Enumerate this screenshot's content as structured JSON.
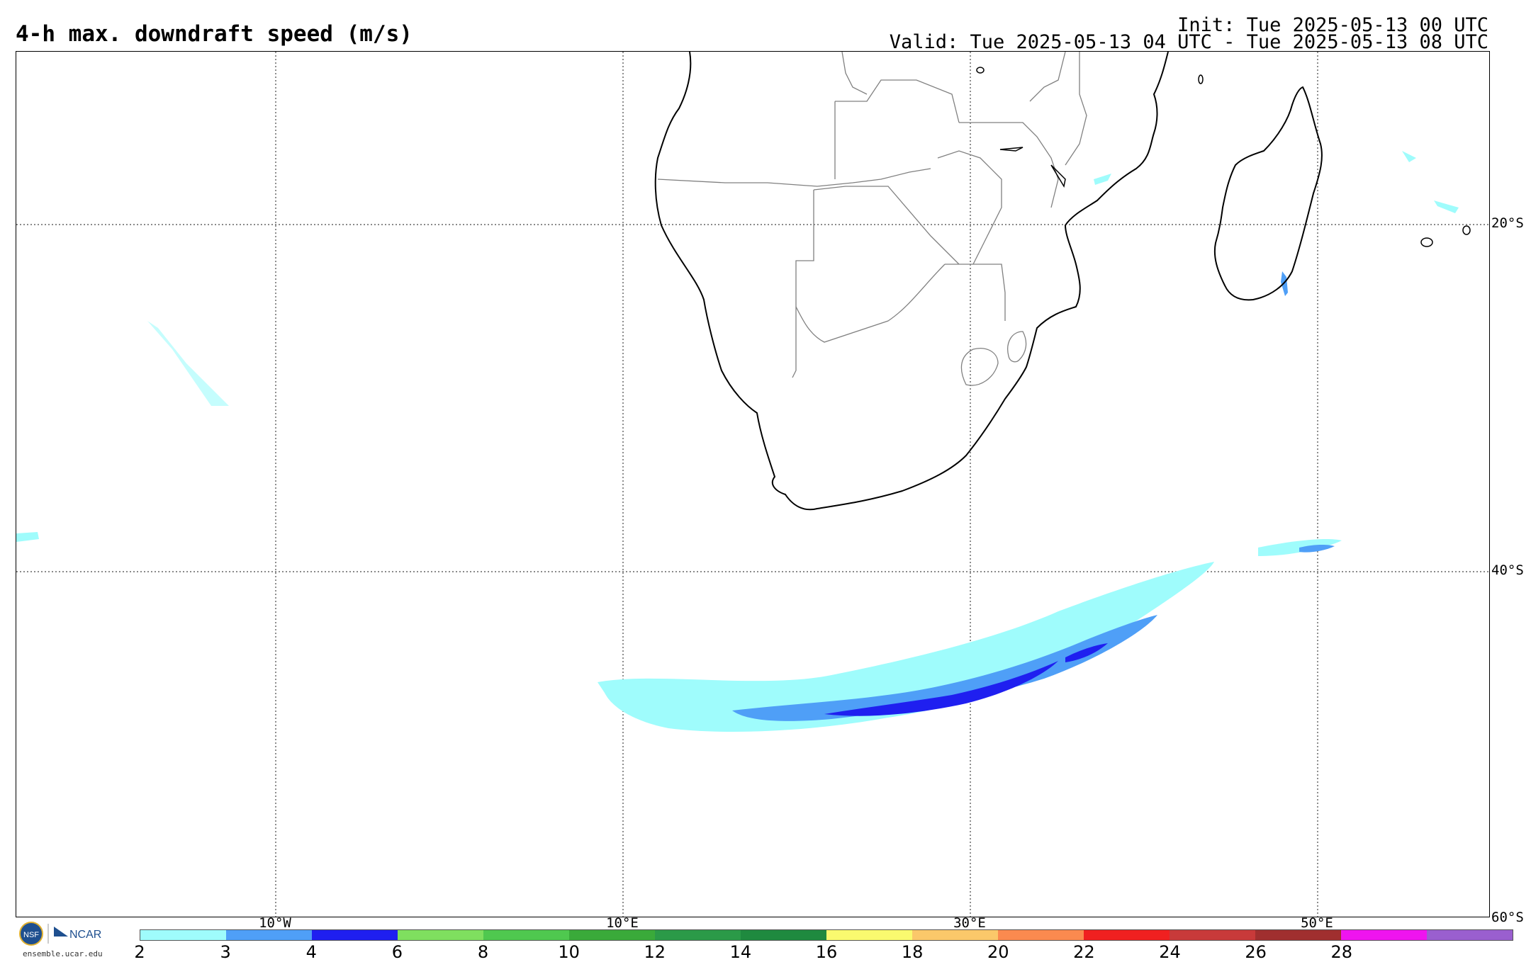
{
  "header": {
    "title": "4-h max. downdraft speed (m/s)",
    "init": "Init: Tue 2025-05-13 00 UTC",
    "valid": "Valid: Tue 2025-05-13 04 UTC - Tue 2025-05-13 08 UTC"
  },
  "map": {
    "lat_labels": [
      "20°S",
      "40°S",
      "60°S"
    ],
    "lon_labels": [
      "10°W",
      "10°E",
      "30°E",
      "50°E"
    ],
    "regions": [
      "Southern Africa",
      "Madagascar",
      "South Atlantic Ocean",
      "Southern Indian Ocean"
    ],
    "coastline_color": "#000000",
    "border_color": "#808080",
    "grid_style": "dotted"
  },
  "colorbar": {
    "ticks": [
      "2",
      "3",
      "4",
      "6",
      "8",
      "10",
      "12",
      "14",
      "16",
      "18",
      "20",
      "22",
      "24",
      "26",
      "28"
    ],
    "colors": [
      "#9ffcfc",
      "#4f9ff7",
      "#1f1ff0",
      "#7fdf5f",
      "#4fc84f",
      "#3aaa3a",
      "#2b9a48",
      "#1f8a3f",
      "#fafa6f",
      "#fbc86a",
      "#fb8a4f",
      "#f02020",
      "#c83a3a",
      "#a02f2f",
      "#ef14ef",
      "#9a5fcf"
    ]
  },
  "footer": {
    "logo_nsf": "NSF",
    "logo_ncar": "NCAR",
    "url": "ensemble.ucar.edu"
  }
}
